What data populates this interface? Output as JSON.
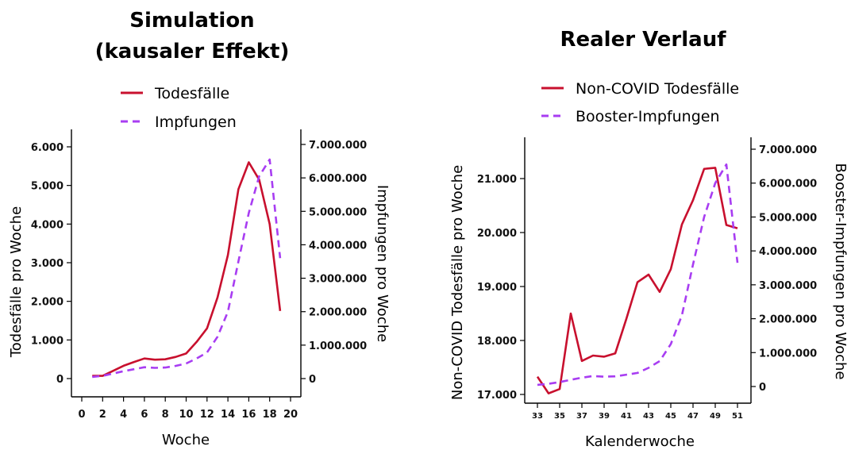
{
  "chart_data": [
    {
      "type": "line",
      "title_lines": [
        "Simulation",
        "(kausaler Effekt)"
      ],
      "xlabel": "Woche",
      "ylabel_left": "Todesfälle pro Woche",
      "ylabel_right": "Impfungen pro Woche",
      "xlim": [
        0,
        20
      ],
      "xticks": [
        0,
        2,
        4,
        6,
        8,
        10,
        12,
        14,
        16,
        18,
        20
      ],
      "xtick_labels": [
        "0",
        "2",
        "4",
        "6",
        "8",
        "10",
        "12",
        "14",
        "16",
        "18",
        "20"
      ],
      "ylim_left": [
        0,
        6000
      ],
      "yticks_left": [
        0,
        1000,
        2000,
        3000,
        4000,
        5000,
        6000
      ],
      "ytick_labels_left": [
        "0",
        "1.000",
        "2.000",
        "3.000",
        "4.000",
        "5.000",
        "6.000"
      ],
      "ylim_right": [
        0,
        7000000
      ],
      "yticks_right": [
        0,
        1000000,
        2000000,
        3000000,
        4000000,
        5000000,
        6000000,
        7000000
      ],
      "ytick_labels_right": [
        "0",
        "1.000.000",
        "2.000.000",
        "3.000.000",
        "4.000.000",
        "5.000.000",
        "6.000.000",
        "7.000.000"
      ],
      "legend_position": "top",
      "series": [
        {
          "name": "Todesfälle",
          "axis": "left",
          "style": "solid",
          "color": "#c8102e",
          "x": [
            1,
            2,
            3,
            4,
            5,
            6,
            7,
            8,
            9,
            10,
            11,
            12,
            13,
            14,
            15,
            16,
            17,
            18,
            19
          ],
          "values": [
            70,
            70,
            200,
            330,
            430,
            520,
            490,
            500,
            560,
            650,
            950,
            1300,
            2100,
            3200,
            4900,
            5600,
            5150,
            4000,
            1750
          ]
        },
        {
          "name": "Impfungen",
          "axis": "right",
          "style": "dashed",
          "color": "#a83df2",
          "x": [
            1,
            2,
            3,
            4,
            5,
            6,
            7,
            8,
            9,
            10,
            11,
            12,
            13,
            14,
            15,
            16,
            17,
            18,
            19
          ],
          "values": [
            50000,
            80000,
            150000,
            220000,
            280000,
            340000,
            320000,
            330000,
            380000,
            450000,
            600000,
            780000,
            1250000,
            2000000,
            3500000,
            4950000,
            6050000,
            6550000,
            3600000
          ]
        }
      ]
    },
    {
      "type": "line",
      "title_lines": [
        "Realer Verlauf"
      ],
      "xlabel": "Kalenderwoche",
      "ylabel_left": "Non-COVID Todesfälle pro Woche",
      "ylabel_right": "Booster-Impfungen pro Woche",
      "xlim": [
        32,
        52
      ],
      "xticks": [
        33,
        35,
        37,
        39,
        41,
        43,
        45,
        47,
        49,
        51
      ],
      "xtick_labels": [
        "33",
        "35",
        "37",
        "39",
        "41",
        "43",
        "45",
        "47",
        "49",
        "51"
      ],
      "ylim_left": [
        16900,
        21700
      ],
      "yticks_left": [
        17000,
        18000,
        19000,
        20000,
        21000
      ],
      "ytick_labels_left": [
        "17.000",
        "18.000",
        "19.000",
        "20.000",
        "21.000"
      ],
      "ylim_right": [
        -300000,
        7200000
      ],
      "yticks_right": [
        0,
        1000000,
        2000000,
        3000000,
        4000000,
        5000000,
        6000000,
        7000000
      ],
      "ytick_labels_right": [
        "0",
        "1.000.000",
        "2.000.000",
        "3.000.000",
        "4.000.000",
        "5.000.000",
        "6.000.000",
        "7.000.000"
      ],
      "legend_position": "top",
      "series": [
        {
          "name": "Non-COVID Todesfälle",
          "axis": "left",
          "style": "solid",
          "color": "#c8102e",
          "x": [
            33,
            34,
            35,
            36,
            37,
            38,
            39,
            40,
            41,
            42,
            43,
            44,
            45,
            46,
            47,
            48,
            49,
            50,
            51
          ],
          "values": [
            17330,
            17020,
            17100,
            18500,
            17620,
            17720,
            17700,
            17760,
            18400,
            19080,
            19220,
            18900,
            19320,
            20150,
            20600,
            21180,
            21200,
            20140,
            20080
          ]
        },
        {
          "name": "Booster-Impfungen",
          "axis": "right",
          "style": "dashed",
          "color": "#a83df2",
          "x": [
            33,
            34,
            35,
            36,
            37,
            38,
            39,
            40,
            41,
            42,
            43,
            44,
            45,
            46,
            47,
            48,
            49,
            50,
            51
          ],
          "values": [
            50000,
            80000,
            130000,
            200000,
            260000,
            310000,
            290000,
            300000,
            350000,
            400000,
            550000,
            750000,
            1250000,
            2100000,
            3600000,
            5000000,
            6000000,
            6550000,
            3650000
          ]
        }
      ]
    }
  ]
}
